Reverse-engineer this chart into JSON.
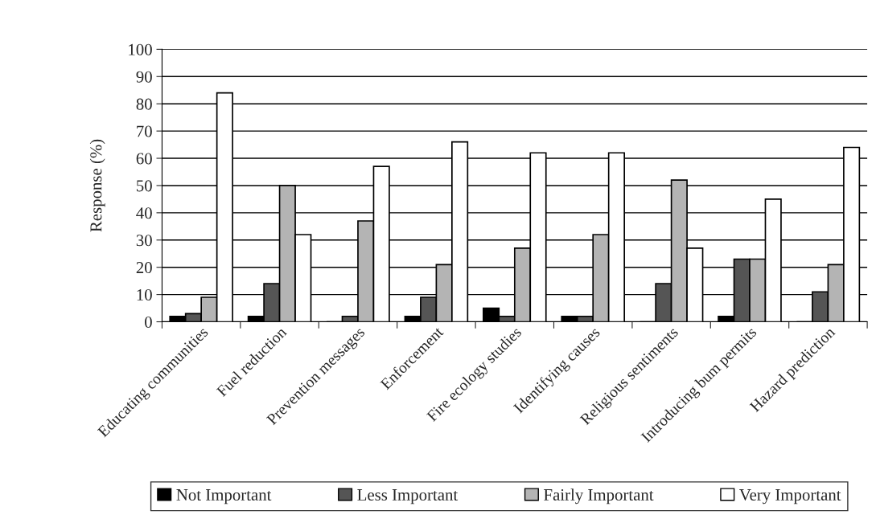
{
  "chart_data": {
    "type": "bar",
    "ylabel": "Response (%)",
    "categories": [
      "Educating communities",
      "Fuel reduction",
      "Prevention messages",
      "Enforcement",
      "Fire ecology studies",
      "Identifying causes",
      "Religious sentiments",
      "Introducing bum permits",
      "Hazard prediction"
    ],
    "series": [
      {
        "name": "Not Important",
        "color": "#000000",
        "values": [
          2,
          2,
          0,
          2,
          5,
          2,
          0,
          2,
          0
        ]
      },
      {
        "name": "Less Important",
        "color": "#555555",
        "values": [
          3,
          14,
          2,
          9,
          2,
          2,
          14,
          23,
          11
        ]
      },
      {
        "name": "Fairly Important",
        "color": "#b4b4b4",
        "values": [
          9,
          50,
          37,
          21,
          27,
          32,
          52,
          23,
          21
        ]
      },
      {
        "name": "Very Important",
        "color": "#ffffff",
        "values": [
          84,
          32,
          57,
          66,
          62,
          62,
          27,
          45,
          64
        ]
      }
    ],
    "ylim": [
      0,
      100
    ],
    "yticks": [
      0,
      10,
      20,
      30,
      40,
      50,
      60,
      70,
      80,
      90,
      100
    ],
    "grid": "y",
    "legend": "bottom"
  }
}
